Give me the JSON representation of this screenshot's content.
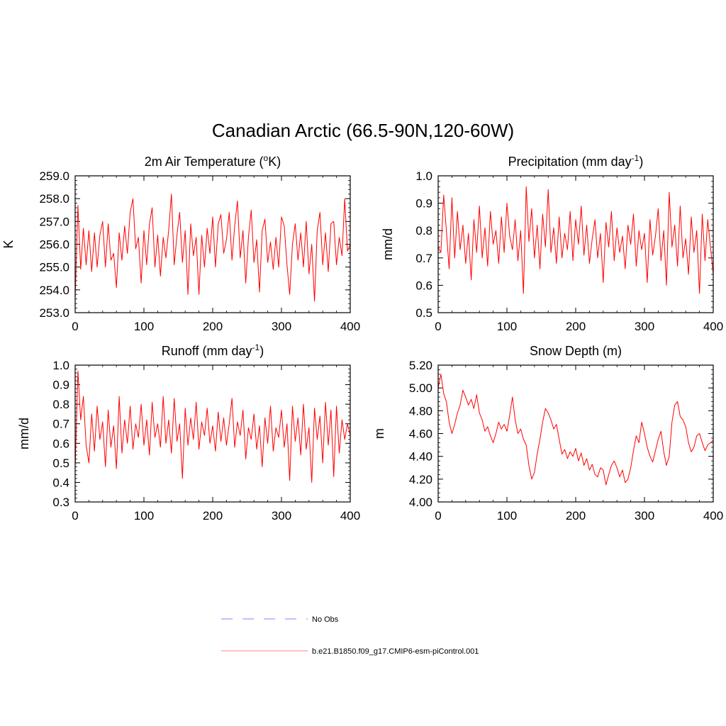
{
  "figure": {
    "title": "Canadian Arctic (66.5-90N,120-60W)"
  },
  "colors": {
    "model_line": "#ff0000",
    "obs_line": "#9c9cff",
    "legend_model_line": "#ff9c9c",
    "axis": "#000000"
  },
  "legend": {
    "items": [
      {
        "label": "No Obs",
        "style": "dashed",
        "color": "#9c9cff"
      },
      {
        "label": "b.e21.B1850.f09_g17.CMIP6-esm-piControl.001",
        "style": "solid",
        "color": "#ff9c9c"
      }
    ]
  },
  "chart_data": [
    {
      "id": "temp",
      "type": "line",
      "title": "2m Air Temperature (",
      "title_sup": "o",
      "title_after": "K)",
      "xlabel": "",
      "ylabel": "K",
      "xlim": [
        0,
        400
      ],
      "ylim": [
        253.0,
        259.0
      ],
      "xticks": [
        0,
        100,
        200,
        300,
        400
      ],
      "xtick_labels": [
        "0",
        "100",
        "200",
        "300",
        "400"
      ],
      "yticks": [
        253.0,
        254.0,
        255.0,
        256.0,
        257.0,
        258.0,
        259.0
      ],
      "ytick_labels": [
        "253.0",
        "254.0",
        "255.0",
        "256.0",
        "257.0",
        "258.0",
        "259.0"
      ],
      "series": [
        {
          "name": "b.e21.B1850.f09_g17.CMIP6-esm-piControl.001",
          "x": [
            0,
            4,
            8,
            12,
            16,
            20,
            24,
            28,
            32,
            36,
            40,
            44,
            48,
            52,
            56,
            60,
            64,
            68,
            72,
            76,
            80,
            84,
            88,
            92,
            96,
            100,
            104,
            108,
            112,
            116,
            120,
            124,
            128,
            132,
            136,
            140,
            144,
            148,
            152,
            156,
            160,
            164,
            168,
            172,
            176,
            180,
            184,
            188,
            192,
            196,
            200,
            204,
            208,
            212,
            216,
            220,
            224,
            228,
            232,
            236,
            240,
            244,
            248,
            252,
            256,
            260,
            264,
            268,
            272,
            276,
            280,
            284,
            288,
            292,
            296,
            300,
            304,
            308,
            312,
            316,
            320,
            324,
            328,
            332,
            336,
            340,
            344,
            348,
            352,
            356,
            360,
            364,
            368,
            372,
            376,
            380,
            384,
            388,
            392,
            396,
            400
          ],
          "y": [
            253.6,
            257.7,
            254.9,
            256.7,
            255.1,
            256.6,
            254.8,
            256.5,
            255.0,
            256.4,
            257.0,
            255.0,
            256.9,
            255.3,
            255.6,
            254.1,
            256.5,
            255.3,
            256.8,
            255.6,
            257.4,
            258.0,
            255.8,
            256.3,
            254.3,
            256.6,
            255.1,
            256.9,
            257.6,
            255.0,
            256.4,
            254.6,
            256.3,
            255.4,
            256.6,
            258.2,
            255.1,
            256.4,
            257.4,
            255.2,
            256.6,
            253.8,
            256.9,
            255.5,
            256.3,
            253.8,
            256.4,
            255.0,
            256.7,
            255.6,
            257.2,
            255.0,
            256.9,
            257.3,
            255.6,
            256.2,
            257.4,
            255.3,
            256.8,
            257.9,
            255.4,
            256.6,
            254.3,
            256.3,
            257.5,
            255.2,
            256.2,
            253.9,
            256.6,
            257.1,
            255.2,
            256.1,
            254.9,
            256.3,
            255.0,
            257.2,
            256.8,
            255.1,
            253.8,
            256.0,
            256.9,
            255.3,
            256.5,
            255.0,
            257.0,
            254.7,
            256.0,
            253.5,
            256.6,
            257.4,
            255.1,
            256.5,
            254.8,
            256.9,
            257.0,
            255.1,
            256.3,
            255.5,
            258.0,
            255.7,
            256.0
          ]
        }
      ]
    },
    {
      "id": "precip",
      "type": "line",
      "title": "Precipitation (mm day",
      "title_sup": "-1",
      "title_after": ")",
      "xlabel": "",
      "ylabel": "mm/d",
      "xlim": [
        0,
        400
      ],
      "ylim": [
        0.5,
        1.0
      ],
      "xticks": [
        0,
        100,
        200,
        300,
        400
      ],
      "xtick_labels": [
        "0",
        "100",
        "200",
        "300",
        "400"
      ],
      "yticks": [
        0.5,
        0.6,
        0.7,
        0.8,
        0.9,
        1.0
      ],
      "ytick_labels": [
        "0.5",
        "0.6",
        "0.7",
        "0.8",
        "0.9",
        "1.0"
      ],
      "series": [
        {
          "name": "b.e21.B1850.f09_g17.CMIP6-esm-piControl.001",
          "x": [
            0,
            4,
            8,
            12,
            16,
            20,
            24,
            28,
            32,
            36,
            40,
            44,
            48,
            52,
            56,
            60,
            64,
            68,
            72,
            76,
            80,
            84,
            88,
            92,
            96,
            100,
            104,
            108,
            112,
            116,
            120,
            124,
            128,
            132,
            136,
            140,
            144,
            148,
            152,
            156,
            160,
            164,
            168,
            172,
            176,
            180,
            184,
            188,
            192,
            196,
            200,
            204,
            208,
            212,
            216,
            220,
            224,
            228,
            232,
            236,
            240,
            244,
            248,
            252,
            256,
            260,
            264,
            268,
            272,
            276,
            280,
            284,
            288,
            292,
            296,
            300,
            304,
            308,
            312,
            316,
            320,
            324,
            328,
            332,
            336,
            340,
            344,
            348,
            352,
            356,
            360,
            364,
            368,
            372,
            376,
            380,
            384,
            388,
            392,
            396,
            400
          ],
          "y": [
            0.74,
            0.72,
            0.93,
            0.8,
            0.66,
            0.92,
            0.7,
            0.87,
            0.73,
            0.82,
            0.68,
            0.79,
            0.62,
            0.84,
            0.72,
            0.89,
            0.7,
            0.81,
            0.67,
            0.87,
            0.75,
            0.8,
            0.68,
            0.85,
            0.72,
            0.9,
            0.78,
            0.73,
            0.84,
            0.69,
            0.8,
            0.57,
            0.96,
            0.76,
            0.88,
            0.7,
            0.82,
            0.66,
            0.86,
            0.74,
            0.95,
            0.72,
            0.81,
            0.68,
            0.85,
            0.7,
            0.79,
            0.73,
            0.87,
            0.69,
            0.84,
            0.75,
            0.89,
            0.71,
            0.82,
            0.68,
            0.77,
            0.84,
            0.7,
            0.79,
            0.61,
            0.83,
            0.74,
            0.87,
            0.69,
            0.81,
            0.72,
            0.78,
            0.66,
            0.82,
            0.75,
            0.86,
            0.67,
            0.8,
            0.73,
            0.79,
            0.61,
            0.84,
            0.71,
            0.78,
            0.88,
            0.69,
            0.8,
            0.6,
            0.94,
            0.74,
            0.82,
            0.67,
            0.89,
            0.7,
            0.77,
            0.64,
            0.85,
            0.72,
            0.8,
            0.57,
            0.86,
            0.69,
            0.84,
            0.74,
            0.64
          ]
        }
      ]
    },
    {
      "id": "runoff",
      "type": "line",
      "title": "Runoff (mm day",
      "title_sup": "-1",
      "title_after": ")",
      "xlabel": "",
      "ylabel": "mm/d",
      "xlim": [
        0,
        400
      ],
      "ylim": [
        0.3,
        1.0
      ],
      "xticks": [
        0,
        100,
        200,
        300,
        400
      ],
      "xtick_labels": [
        "0",
        "100",
        "200",
        "300",
        "400"
      ],
      "yticks": [
        0.3,
        0.4,
        0.5,
        0.6,
        0.7,
        0.8,
        0.9,
        1.0
      ],
      "ytick_labels": [
        "0.3",
        "0.4",
        "0.5",
        "0.6",
        "0.7",
        "0.8",
        "0.9",
        "1.0"
      ],
      "series": [
        {
          "name": "b.e21.B1850.f09_g17.CMIP6-esm-piControl.001",
          "x": [
            0,
            4,
            8,
            12,
            16,
            20,
            24,
            28,
            32,
            36,
            40,
            44,
            48,
            52,
            56,
            60,
            64,
            68,
            72,
            76,
            80,
            84,
            88,
            92,
            96,
            100,
            104,
            108,
            112,
            116,
            120,
            124,
            128,
            132,
            136,
            140,
            144,
            148,
            152,
            156,
            160,
            164,
            168,
            172,
            176,
            180,
            184,
            188,
            192,
            196,
            200,
            204,
            208,
            212,
            216,
            220,
            224,
            228,
            232,
            236,
            240,
            244,
            248,
            252,
            256,
            260,
            264,
            268,
            272,
            276,
            280,
            284,
            288,
            292,
            296,
            300,
            304,
            308,
            312,
            316,
            320,
            324,
            328,
            332,
            336,
            340,
            344,
            348,
            352,
            356,
            360,
            364,
            368,
            372,
            376,
            380,
            384,
            388,
            392,
            396,
            400
          ],
          "y": [
            0.47,
            0.97,
            0.72,
            0.84,
            0.59,
            0.5,
            0.75,
            0.56,
            0.79,
            0.62,
            0.71,
            0.48,
            0.77,
            0.58,
            0.69,
            0.47,
            0.84,
            0.55,
            0.72,
            0.6,
            0.79,
            0.57,
            0.7,
            0.63,
            0.8,
            0.59,
            0.72,
            0.54,
            0.81,
            0.63,
            0.7,
            0.58,
            0.84,
            0.6,
            0.72,
            0.55,
            0.83,
            0.61,
            0.7,
            0.42,
            0.78,
            0.59,
            0.73,
            0.62,
            0.81,
            0.57,
            0.71,
            0.64,
            0.78,
            0.6,
            0.69,
            0.56,
            0.76,
            0.61,
            0.73,
            0.59,
            0.7,
            0.83,
            0.58,
            0.71,
            0.64,
            0.77,
            0.52,
            0.68,
            0.62,
            0.75,
            0.57,
            0.69,
            0.48,
            0.73,
            0.6,
            0.79,
            0.56,
            0.68,
            0.63,
            0.77,
            0.58,
            0.7,
            0.41,
            0.79,
            0.61,
            0.73,
            0.54,
            0.8,
            0.57,
            0.68,
            0.4,
            0.78,
            0.62,
            0.74,
            0.5,
            0.81,
            0.59,
            0.77,
            0.43,
            0.79,
            0.55,
            0.72,
            0.62,
            0.7,
            0.64
          ]
        }
      ]
    },
    {
      "id": "snow",
      "type": "line",
      "title": "Snow Depth (m)",
      "title_sup": "",
      "title_after": "",
      "xlabel": "",
      "ylabel": "m",
      "xlim": [
        0,
        400
      ],
      "ylim": [
        4.0,
        5.2
      ],
      "xticks": [
        0,
        100,
        200,
        300,
        400
      ],
      "xtick_labels": [
        "0",
        "100",
        "200",
        "300",
        "400"
      ],
      "yticks": [
        4.0,
        4.2,
        4.4,
        4.6,
        4.8,
        5.0,
        5.2
      ],
      "ytick_labels": [
        "4.00",
        "4.20",
        "4.40",
        "4.60",
        "4.80",
        "5.00",
        "5.20"
      ],
      "series": [
        {
          "name": "b.e21.B1850.f09_g17.CMIP6-esm-piControl.001",
          "x": [
            0,
            4,
            8,
            12,
            16,
            20,
            24,
            28,
            32,
            36,
            40,
            44,
            48,
            52,
            56,
            60,
            64,
            68,
            72,
            76,
            80,
            84,
            88,
            92,
            96,
            100,
            104,
            108,
            112,
            116,
            120,
            124,
            128,
            132,
            136,
            140,
            144,
            148,
            152,
            156,
            160,
            164,
            168,
            172,
            176,
            180,
            184,
            188,
            192,
            196,
            200,
            204,
            208,
            212,
            216,
            220,
            224,
            228,
            232,
            236,
            240,
            244,
            248,
            252,
            256,
            260,
            264,
            268,
            272,
            276,
            280,
            284,
            288,
            292,
            296,
            300,
            304,
            308,
            312,
            316,
            320,
            324,
            328,
            332,
            336,
            340,
            344,
            348,
            352,
            356,
            360,
            364,
            368,
            372,
            376,
            380,
            384,
            388,
            392,
            396,
            400
          ],
          "y": [
            5.0,
            5.12,
            4.95,
            4.88,
            4.7,
            4.6,
            4.68,
            4.78,
            4.85,
            4.98,
            4.92,
            4.85,
            4.9,
            4.82,
            4.94,
            4.78,
            4.72,
            4.62,
            4.66,
            4.58,
            4.52,
            4.6,
            4.7,
            4.64,
            4.68,
            4.62,
            4.76,
            4.92,
            4.72,
            4.6,
            4.64,
            4.55,
            4.5,
            4.32,
            4.2,
            4.26,
            4.42,
            4.55,
            4.7,
            4.82,
            4.78,
            4.72,
            4.64,
            4.68,
            4.55,
            4.42,
            4.46,
            4.38,
            4.44,
            4.4,
            4.47,
            4.36,
            4.43,
            4.32,
            4.38,
            4.28,
            4.33,
            4.24,
            4.22,
            4.3,
            4.28,
            4.15,
            4.24,
            4.32,
            4.36,
            4.3,
            4.22,
            4.28,
            4.17,
            4.2,
            4.3,
            4.45,
            4.58,
            4.52,
            4.7,
            4.6,
            4.48,
            4.4,
            4.35,
            4.45,
            4.55,
            4.62,
            4.44,
            4.32,
            4.4,
            4.7,
            4.85,
            4.88,
            4.75,
            4.72,
            4.66,
            4.52,
            4.44,
            4.48,
            4.58,
            4.6,
            4.52,
            4.45,
            4.5,
            4.52,
            4.54
          ]
        }
      ]
    }
  ]
}
